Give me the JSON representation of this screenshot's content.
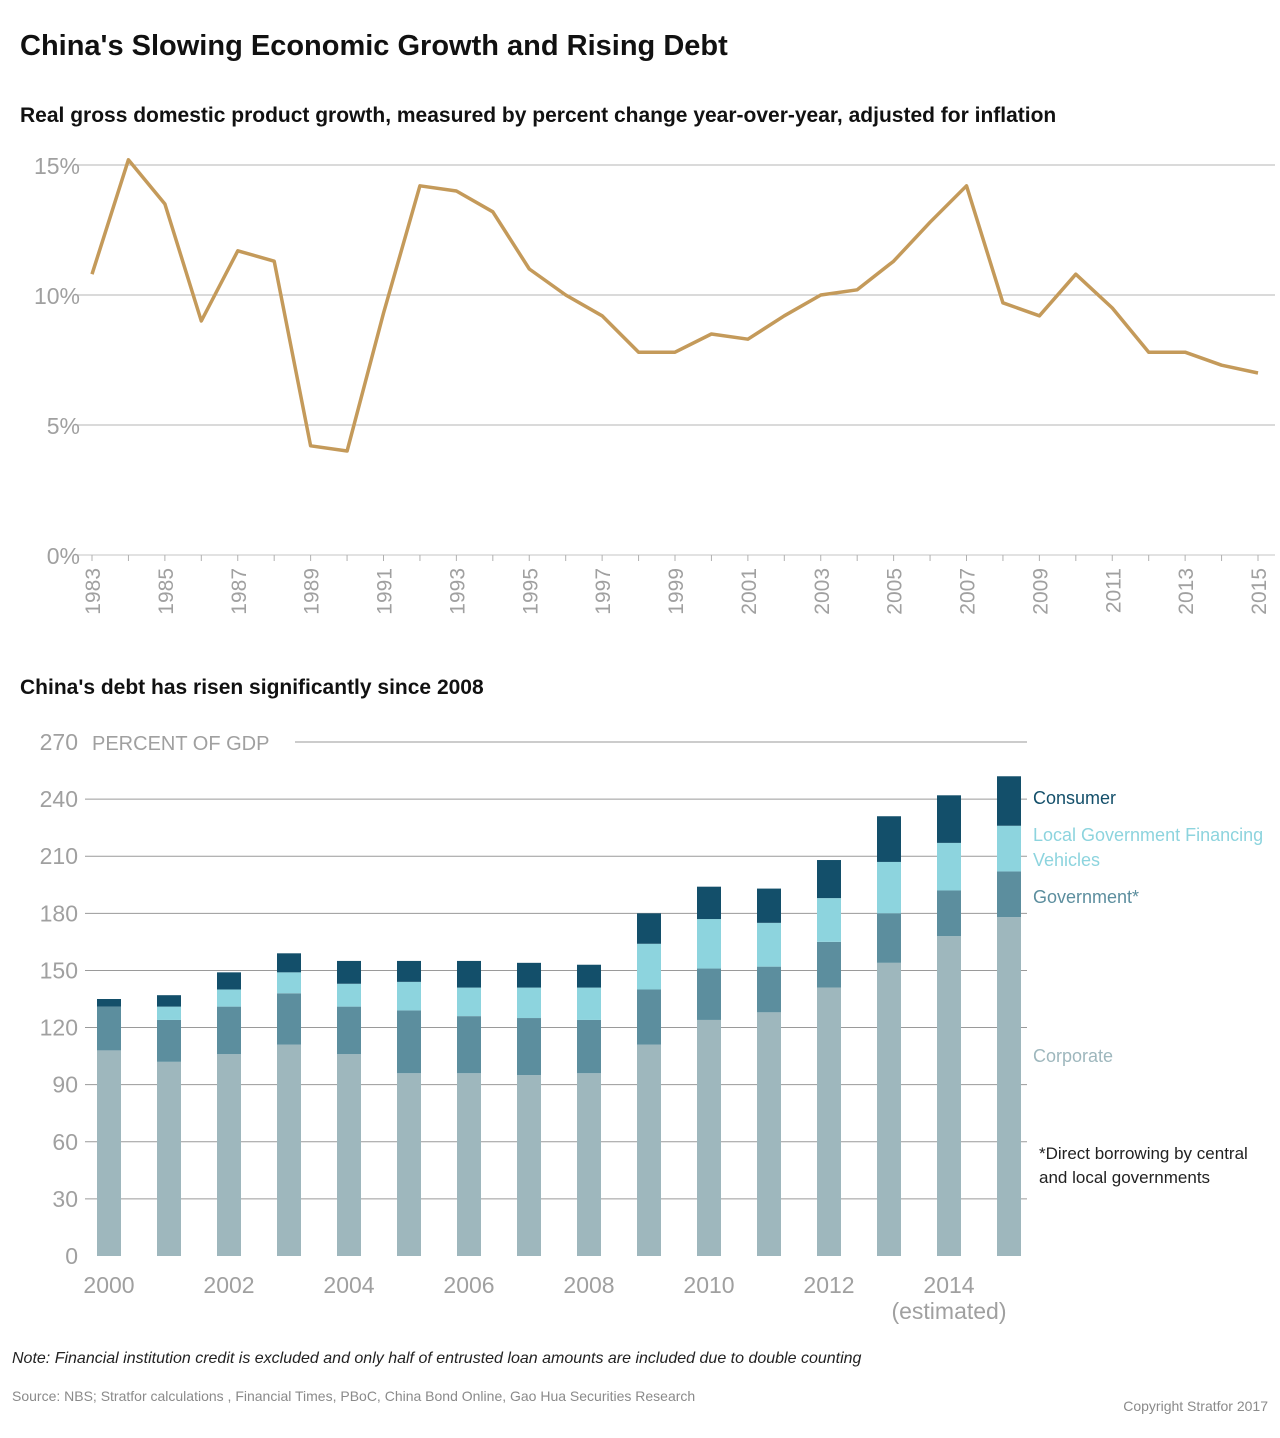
{
  "title": "China's Slowing Economic Growth and Rising Debt",
  "note": "Note: Financial institution credit is excluded and only half of entrusted loan amounts are included due to double counting",
  "source": "Source: NBS; Stratfor calculations , Financial Times, PBoC, China Bond Online, Gao Hua Securities Research",
  "copyright": "Copyright Stratfor 2017",
  "colors": {
    "gdp_line": "#c49a5a",
    "consumer": "#134f6a",
    "lgfv": "#8dd4de",
    "government": "#5c8e9e",
    "corporate": "#9eb7bd",
    "grid": "#b5b5b5",
    "axis_text": "#a0a0a0"
  },
  "chart_data": [
    {
      "type": "line",
      "title": "Real gross domestic product growth, measured by percent change year-over-year, adjusted for inflation",
      "x": [
        1983,
        1984,
        1985,
        1986,
        1987,
        1988,
        1989,
        1990,
        1991,
        1992,
        1993,
        1994,
        1995,
        1996,
        1997,
        1998,
        1999,
        2000,
        2001,
        2002,
        2003,
        2004,
        2005,
        2006,
        2007,
        2008,
        2009,
        2010,
        2011,
        2012,
        2013,
        2014,
        2015
      ],
      "series": [
        {
          "values": [
            10.8,
            15.2,
            13.5,
            9.0,
            11.7,
            11.3,
            4.2,
            4.0,
            9.3,
            14.2,
            14.0,
            13.2,
            11.0,
            10.0,
            9.2,
            7.8,
            7.8,
            8.5,
            8.3,
            9.2,
            10.0,
            10.2,
            11.3,
            12.8,
            14.2,
            9.7,
            9.2,
            10.8,
            9.5,
            7.8,
            7.8,
            7.3,
            7.0
          ]
        }
      ],
      "y_ticks": [
        0,
        5,
        10,
        15
      ],
      "y_tick_labels": [
        "0%",
        "5%",
        "10%",
        "15%"
      ],
      "x_tick_labels": [
        "1983",
        "1985",
        "1987",
        "1989",
        "1991",
        "1993",
        "1995",
        "1997",
        "1999",
        "2001",
        "2003",
        "2005",
        "2007",
        "2009",
        "2011",
        "2013",
        "2015"
      ],
      "ylim": [
        0,
        15
      ],
      "xlim": [
        1983,
        2015
      ],
      "grid": true
    },
    {
      "type": "bar",
      "stacked": true,
      "title": "China's debt has risen significantly since 2008",
      "ylabel": "PERCENT OF GDP",
      "categories": [
        "2000",
        "2001",
        "2002",
        "2003",
        "2004",
        "2005",
        "2006",
        "2007",
        "2008",
        "2009",
        "2010",
        "2011",
        "2012",
        "2013",
        "2014",
        "2015"
      ],
      "x_tick_labels": [
        "2000",
        "2002",
        "2004",
        "2006",
        "2008",
        "2010",
        "2012",
        "2014"
      ],
      "x_tick_note": "(estimated)",
      "y_ticks": [
        0,
        30,
        60,
        90,
        120,
        150,
        180,
        210,
        240,
        270
      ],
      "ylim": [
        0,
        270
      ],
      "grid": true,
      "legend_position": "right",
      "series": [
        {
          "name": "Corporate",
          "values": [
            108,
            102,
            106,
            111,
            106,
            96,
            96,
            95,
            96,
            111,
            124,
            128,
            141,
            154,
            168,
            178
          ]
        },
        {
          "name": "Government*",
          "values": [
            23,
            22,
            25,
            27,
            25,
            33,
            30,
            30,
            28,
            29,
            27,
            24,
            24,
            26,
            24,
            24
          ]
        },
        {
          "name": "Local Government Financing Vehicles",
          "values": [
            0,
            7,
            9,
            11,
            12,
            15,
            15,
            16,
            17,
            24,
            26,
            23,
            23,
            27,
            25,
            24
          ]
        },
        {
          "name": "Consumer",
          "values": [
            4,
            6,
            9,
            10,
            12,
            11,
            14,
            13,
            12,
            16,
            17,
            18,
            20,
            24,
            25,
            26
          ]
        }
      ],
      "footnote": "*Direct borrowing by central and local governments"
    }
  ]
}
